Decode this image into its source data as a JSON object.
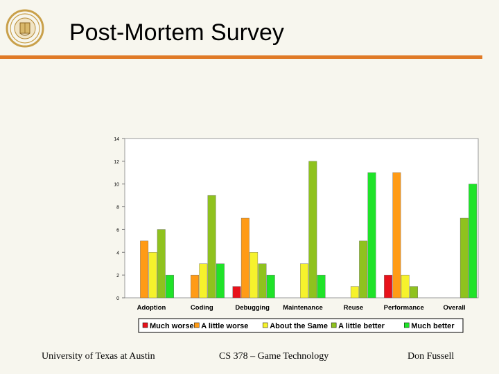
{
  "slide": {
    "title": "Post-Mortem Survey",
    "footer_left": "University of Texas at Austin",
    "footer_center": "CS 378 – Game Technology",
    "footer_right": "Don Fussell",
    "logo_icon": "university-seal-icon"
  },
  "colors": {
    "accent_rule": "#e07a26",
    "background": "#f7f6ee"
  },
  "chart_data": {
    "type": "bar",
    "title": "",
    "xlabel": "",
    "ylabel": "",
    "ylim": [
      0,
      14
    ],
    "yticks": [
      "0",
      "2",
      "4",
      "6",
      "8",
      "10",
      "12",
      "14"
    ],
    "grid": false,
    "legend_position": "bottom",
    "categories": [
      "Adoption",
      "Coding",
      "Debugging",
      "Maintenance",
      "Reuse",
      "Performance",
      "Overall"
    ],
    "series": [
      {
        "name": "Much worse",
        "color": "#e8121b",
        "values": [
          0,
          0,
          1,
          0,
          0,
          2,
          0
        ]
      },
      {
        "name": "A little worse",
        "color": "#ff9b16",
        "values": [
          5,
          2,
          7,
          0,
          0,
          11,
          0
        ]
      },
      {
        "name": "About the Same",
        "color": "#f6f22c",
        "values": [
          4,
          3,
          4,
          3,
          1,
          2,
          0
        ]
      },
      {
        "name": "A little better",
        "color": "#8fc21e",
        "values": [
          6,
          9,
          3,
          12,
          5,
          1,
          7
        ]
      },
      {
        "name": "Much better",
        "color": "#1fe329",
        "values": [
          2,
          3,
          2,
          2,
          11,
          0,
          10
        ]
      }
    ]
  }
}
